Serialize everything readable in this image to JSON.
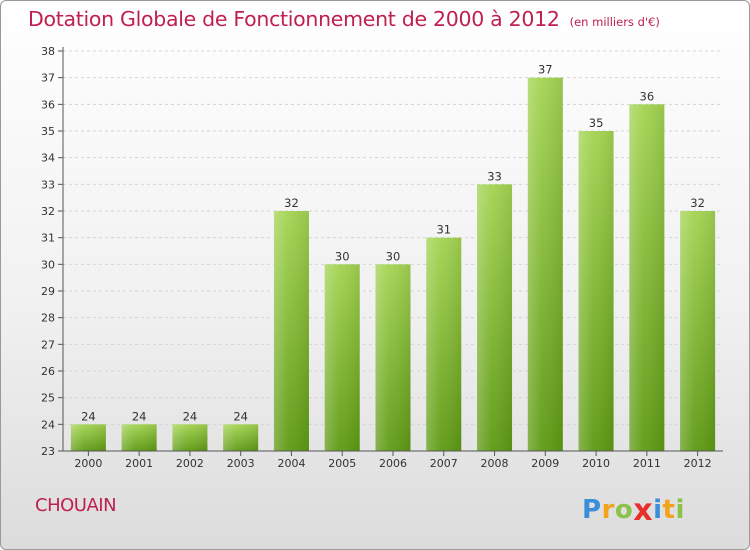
{
  "title": "Dotation Globale de Fonctionnement de 2000 à 2012",
  "subtitle": "(en milliers d'€)",
  "commune": "CHOUAIN",
  "logo": {
    "letters": [
      "P",
      "r",
      "o",
      "x",
      "i",
      "t",
      "i"
    ],
    "colors": [
      "#3a8fd8",
      "#f2a31b",
      "#8bc34a",
      "#e8302b",
      "#3a8fd8",
      "#f2a31b",
      "#8bc34a"
    ]
  },
  "colors": {
    "bar": "#8bc34a",
    "title": "#c0204e"
  },
  "chart_data": {
    "type": "bar",
    "title": "Dotation Globale de Fonctionnement de 2000 à 2012",
    "subtitle": "(en milliers d'€)",
    "categories": [
      "2000",
      "2001",
      "2002",
      "2003",
      "2004",
      "2005",
      "2006",
      "2007",
      "2008",
      "2009",
      "2010",
      "2011",
      "2012"
    ],
    "values": [
      24,
      24,
      24,
      24,
      32,
      30,
      30,
      31,
      33,
      37,
      35,
      36,
      32
    ],
    "ylim": [
      23,
      38
    ],
    "yticks": [
      23,
      24,
      25,
      26,
      27,
      28,
      29,
      30,
      31,
      32,
      33,
      34,
      35,
      36,
      37,
      38
    ],
    "grid": true,
    "data_labels": true,
    "xlabel": "",
    "ylabel": ""
  }
}
